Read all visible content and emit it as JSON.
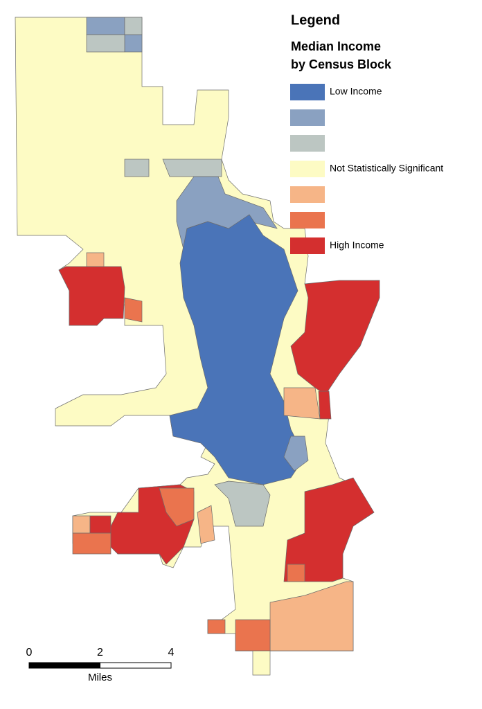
{
  "legend": {
    "title": "Legend",
    "subtitle": [
      "Median Income",
      "by Census Block"
    ],
    "items": [
      {
        "label": "Low Income",
        "color": "#4a74b8"
      },
      {
        "label": null,
        "color": "#8aa1c1"
      },
      {
        "label": null,
        "color": "#bcc6c2"
      },
      {
        "label": "Not Statistically Significant",
        "color": "#fdfbc4"
      },
      {
        "label": null,
        "color": "#f6b587"
      },
      {
        "label": null,
        "color": "#ea744e"
      },
      {
        "label": "High Income",
        "color": "#d42f2f"
      }
    ]
  },
  "scale_bar": {
    "ticks": [
      0,
      2,
      4
    ],
    "unit": "Miles"
  }
}
